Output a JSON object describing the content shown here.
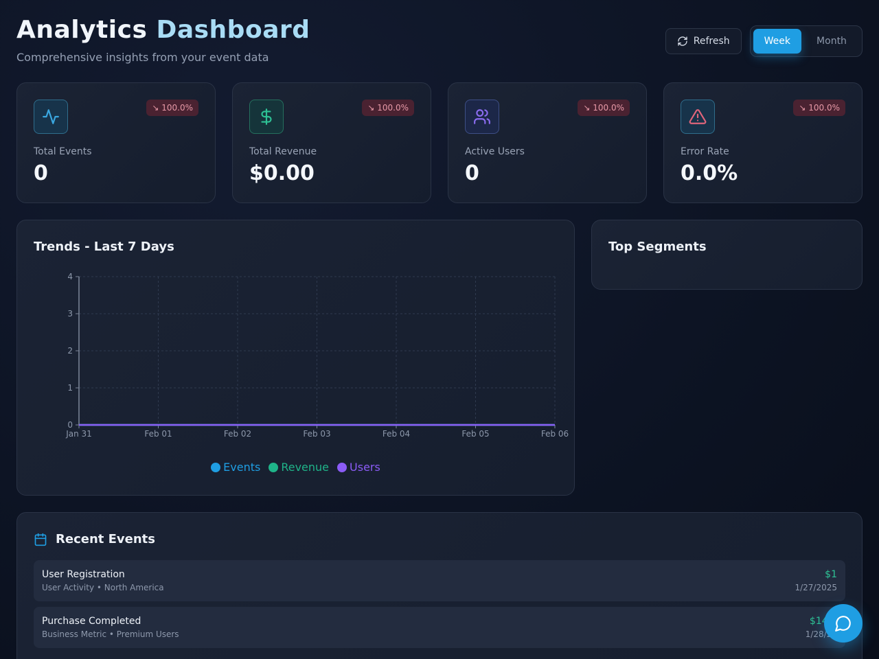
{
  "header": {
    "title_part1": "Analytics",
    "title_part2": "Dashboard",
    "subtitle": "Comprehensive insights from your event data"
  },
  "controls": {
    "refresh_label": "Refresh",
    "period_options": [
      "Week",
      "Month"
    ],
    "selected_period": "Week"
  },
  "kpis": [
    {
      "label": "Total Events",
      "value": "0",
      "change": "↘ 100.0%",
      "icon": "activity-icon",
      "color": "#3aa7e0"
    },
    {
      "label": "Total Revenue",
      "value": "$0.00",
      "change": "↘ 100.0%",
      "icon": "dollar-icon",
      "color": "#2ec295"
    },
    {
      "label": "Active Users",
      "value": "0",
      "change": "↘ 100.0%",
      "icon": "users-icon",
      "color": "#8b6cf0"
    },
    {
      "label": "Error Rate",
      "value": "0.0%",
      "change": "↘ 100.0%",
      "icon": "alert-triangle-icon",
      "color": "#e0657b"
    }
  ],
  "trends": {
    "title": "Trends - Last 7 Days"
  },
  "chart_data": {
    "type": "line",
    "x": [
      "Jan 31",
      "Feb 01",
      "Feb 02",
      "Feb 03",
      "Feb 04",
      "Feb 05",
      "Feb 06"
    ],
    "series": [
      {
        "name": "Events",
        "values": [
          0,
          0,
          0,
          0,
          0,
          0,
          0
        ],
        "color": "#1f9ee3"
      },
      {
        "name": "Revenue",
        "values": [
          0,
          0,
          0,
          0,
          0,
          0,
          0
        ],
        "color": "#1fb489"
      },
      {
        "name": "Users",
        "values": [
          0,
          0,
          0,
          0,
          0,
          0,
          0
        ],
        "color": "#8b5cf6"
      }
    ],
    "ylim": [
      0,
      4
    ],
    "yticks": [
      "0",
      "1",
      "2",
      "3",
      "4"
    ],
    "grid": true,
    "legend": "bottom-center"
  },
  "segments": {
    "title": "Top Segments"
  },
  "recent": {
    "title": "Recent Events",
    "events": [
      {
        "name": "User Registration",
        "meta": "User Activity • North America",
        "amount": "$1",
        "date": "1/27/2025"
      },
      {
        "name": "Purchase Completed",
        "meta": "Business Metric • Premium Users",
        "amount": "$149.",
        "date": "1/28/20"
      }
    ]
  }
}
